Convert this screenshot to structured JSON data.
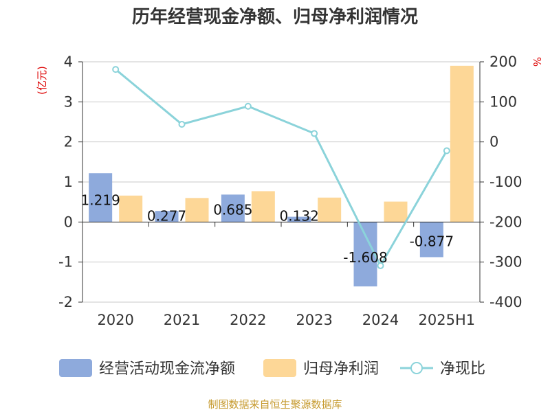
{
  "chart_data": {
    "type": "bar",
    "title": "历年经营现金净额、归母净利润情况",
    "categories": [
      "2020",
      "2021",
      "2022",
      "2023",
      "2024",
      "2025H1"
    ],
    "series": [
      {
        "name": "经营活动现金流净额",
        "type": "bar",
        "axis": "left",
        "color": "#8eaadc",
        "values": [
          1.219,
          0.277,
          0.685,
          0.132,
          -1.608,
          -0.877
        ],
        "labels": [
          "1.219",
          "0.277",
          "0.685",
          "0.132",
          "-1.608",
          "-0.877"
        ]
      },
      {
        "name": "归母净利润",
        "type": "bar",
        "axis": "left",
        "color": "#fdd797",
        "values": [
          0.66,
          0.6,
          0.77,
          0.61,
          0.51,
          3.9
        ]
      },
      {
        "name": "净现比",
        "type": "line",
        "axis": "right",
        "color": "#8bd3da",
        "values": [
          181,
          44,
          89,
          21,
          -309,
          -22
        ]
      }
    ],
    "y_left": {
      "unit": "(亿元)",
      "min": -2,
      "max": 4,
      "ticks": [
        4,
        3,
        2,
        1,
        0,
        -1,
        -2
      ]
    },
    "y_right": {
      "unit": "%",
      "min": -400,
      "max": 200,
      "ticks": [
        200,
        100,
        0,
        -100,
        -200,
        -300,
        -400
      ]
    },
    "grid": true,
    "legend_position": "bottom"
  },
  "source": "制图数据来自恒生聚源数据库"
}
